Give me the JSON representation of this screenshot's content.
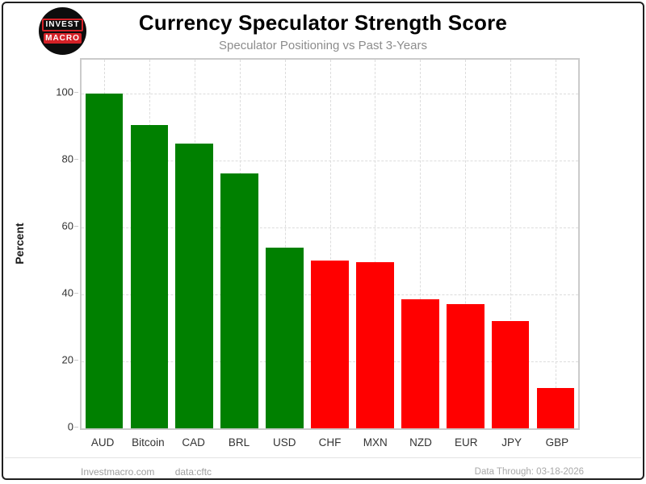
{
  "header": {
    "logo_line1": "INVEST",
    "logo_line2": "MACRO",
    "title": "Currency Speculator Strength Score",
    "subtitle": "Speculator Positioning vs Past 3-Years"
  },
  "chart_data": {
    "type": "bar",
    "title": "Currency Speculator Strength Score",
    "subtitle": "Speculator Positioning vs Past 3-Years",
    "xlabel": "",
    "ylabel": "Percent",
    "categories": [
      "AUD",
      "Bitcoin",
      "CAD",
      "BRL",
      "USD",
      "CHF",
      "MXN",
      "NZD",
      "EUR",
      "JPY",
      "GBP"
    ],
    "values": [
      100,
      90.5,
      85,
      76,
      54,
      50,
      49.5,
      38.5,
      37,
      32,
      12
    ],
    "bar_colors": [
      "#008000",
      "#008000",
      "#008000",
      "#008000",
      "#008000",
      "#ff0000",
      "#ff0000",
      "#ff0000",
      "#ff0000",
      "#ff0000",
      "#ff0000"
    ],
    "strong_color": "#008000",
    "weak_color": "#ff0000",
    "yticks": [
      0,
      20,
      40,
      60,
      80,
      100
    ],
    "ylim": [
      0,
      110
    ],
    "grid": "dashed, horizontal at yticks and vertical at each category",
    "legend": "none"
  },
  "footer": {
    "site": "Investmacro.com",
    "source": "data:cftc",
    "data_through": "Data Through: 03-18-2026"
  }
}
